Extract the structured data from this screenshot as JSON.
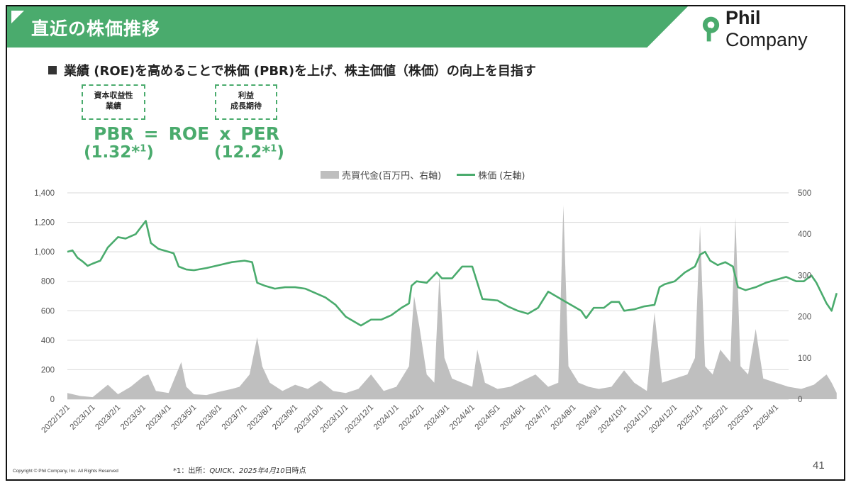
{
  "header": {
    "title": "直近の株価推移",
    "logo_text_bold": "Phil",
    "logo_text": " Company"
  },
  "subtitle": "業績 (ROE)を高めることで株価 (PBR)を上げ、株主価値（株価）の向上を目指す",
  "boxes": {
    "roe": {
      "line1": "資本収益性",
      "line2": "業績"
    },
    "per": {
      "line1": "利益",
      "line2": "成長期待"
    }
  },
  "formula": {
    "pbr": "PBR",
    "eq": "=",
    "roe": "ROE",
    "x": "x",
    "per": "PER",
    "pbr_value": "(1.32*",
    "per_value": "(12.2*",
    "sup": "1",
    "close": ")"
  },
  "legend": {
    "volume": "売買代金(百万円、右軸)",
    "price": "株価 (左軸)"
  },
  "colors": {
    "accent": "#4aab6d",
    "volume": "#bfbfbf"
  },
  "footer": {
    "copyright": "Copyright © Phil Company, Inc.  All Rights Reserved",
    "footnote_prefix": "*1：出所：",
    "footnote_italic": "QUICK、2025年4月10",
    "footnote_suffix": "日時点",
    "page": "41"
  },
  "chart_data": {
    "type": "line",
    "left_axis": {
      "label": "株価 (左軸)",
      "min": 0,
      "max": 1400,
      "ticks": [
        "0",
        "200",
        "400",
        "600",
        "800",
        "1,000",
        "1,200",
        "1,400"
      ]
    },
    "right_axis": {
      "label": "売買代金(百万円、右軸)",
      "min": 0,
      "max": 500,
      "ticks": [
        "0",
        "100",
        "200",
        "300",
        "400",
        "500"
      ]
    },
    "x_ticks": [
      "2022/12/1",
      "2023/1/1",
      "2023/2/1",
      "2023/3/1",
      "2023/4/1",
      "2023/5/1",
      "2023/6/1",
      "2023/7/1",
      "2023/8/1",
      "2023/9/1",
      "2023/10/1",
      "2023/11/1",
      "2023/12/1",
      "2024/1/1",
      "2024/2/1",
      "2024/3/1",
      "2024/4/1",
      "2024/5/1",
      "2024/6/1",
      "2024/7/1",
      "2024/8/1",
      "2024/9/1",
      "2024/10/1",
      "2024/11/1",
      "2024/12/1",
      "2025/1/1",
      "2025/2/1",
      "2025/3/1",
      "2025/4/1"
    ],
    "series": [
      {
        "name": "株価 (左軸)",
        "axis": "left",
        "points": [
          [
            0,
            1000
          ],
          [
            0.2,
            1010
          ],
          [
            0.4,
            960
          ],
          [
            0.6,
            935
          ],
          [
            0.8,
            905
          ],
          [
            1.0,
            920
          ],
          [
            1.3,
            940
          ],
          [
            1.6,
            1030
          ],
          [
            2.0,
            1100
          ],
          [
            2.3,
            1090
          ],
          [
            2.7,
            1120
          ],
          [
            3.1,
            1210
          ],
          [
            3.3,
            1060
          ],
          [
            3.6,
            1020
          ],
          [
            4.0,
            1000
          ],
          [
            4.2,
            990
          ],
          [
            4.4,
            900
          ],
          [
            4.7,
            880
          ],
          [
            5.0,
            875
          ],
          [
            5.5,
            890
          ],
          [
            6.0,
            910
          ],
          [
            6.5,
            930
          ],
          [
            7.0,
            940
          ],
          [
            7.3,
            930
          ],
          [
            7.5,
            790
          ],
          [
            7.8,
            770
          ],
          [
            8.2,
            750
          ],
          [
            8.6,
            760
          ],
          [
            9.0,
            760
          ],
          [
            9.4,
            750
          ],
          [
            9.8,
            720
          ],
          [
            10.2,
            690
          ],
          [
            10.6,
            640
          ],
          [
            11.0,
            560
          ],
          [
            11.3,
            530
          ],
          [
            11.6,
            500
          ],
          [
            12.0,
            540
          ],
          [
            12.4,
            540
          ],
          [
            12.8,
            570
          ],
          [
            13.2,
            620
          ],
          [
            13.5,
            650
          ],
          [
            13.6,
            770
          ],
          [
            13.8,
            800
          ],
          [
            14.2,
            790
          ],
          [
            14.6,
            860
          ],
          [
            14.8,
            820
          ],
          [
            15.2,
            820
          ],
          [
            15.6,
            900
          ],
          [
            16.0,
            900
          ],
          [
            16.4,
            680
          ],
          [
            17.0,
            670
          ],
          [
            17.4,
            630
          ],
          [
            17.8,
            600
          ],
          [
            18.2,
            580
          ],
          [
            18.6,
            620
          ],
          [
            19.0,
            730
          ],
          [
            19.3,
            700
          ],
          [
            19.7,
            660
          ],
          [
            20.0,
            630
          ],
          [
            20.3,
            600
          ],
          [
            20.5,
            550
          ],
          [
            20.8,
            620
          ],
          [
            21.2,
            620
          ],
          [
            21.5,
            660
          ],
          [
            21.8,
            660
          ],
          [
            22.0,
            600
          ],
          [
            22.4,
            610
          ],
          [
            22.8,
            630
          ],
          [
            23.2,
            640
          ],
          [
            23.4,
            760
          ],
          [
            23.6,
            780
          ],
          [
            24.0,
            800
          ],
          [
            24.4,
            860
          ],
          [
            24.8,
            900
          ],
          [
            25.0,
            980
          ],
          [
            25.2,
            1000
          ],
          [
            25.4,
            940
          ],
          [
            25.7,
            910
          ],
          [
            26.0,
            930
          ],
          [
            26.3,
            900
          ],
          [
            26.5,
            760
          ],
          [
            26.8,
            740
          ],
          [
            27.2,
            760
          ],
          [
            27.6,
            790
          ],
          [
            28.0,
            810
          ],
          [
            28.4,
            830
          ],
          [
            28.8,
            800
          ],
          [
            29.1,
            800
          ],
          [
            29.4,
            840
          ],
          [
            29.6,
            790
          ],
          [
            29.8,
            720
          ],
          [
            30.0,
            650
          ],
          [
            30.2,
            600
          ],
          [
            30.4,
            720
          ]
        ]
      },
      {
        "name": "売買代金(百万円、右軸)",
        "axis": "right",
        "points": [
          [
            0,
            15
          ],
          [
            0.5,
            8
          ],
          [
            1.0,
            5
          ],
          [
            1.3,
            20
          ],
          [
            1.6,
            35
          ],
          [
            2.0,
            12
          ],
          [
            2.5,
            30
          ],
          [
            3.0,
            55
          ],
          [
            3.2,
            60
          ],
          [
            3.5,
            20
          ],
          [
            4.0,
            15
          ],
          [
            4.5,
            90
          ],
          [
            4.7,
            30
          ],
          [
            5.0,
            12
          ],
          [
            5.5,
            10
          ],
          [
            6.0,
            18
          ],
          [
            6.5,
            25
          ],
          [
            6.8,
            30
          ],
          [
            7.2,
            60
          ],
          [
            7.5,
            150
          ],
          [
            7.7,
            80
          ],
          [
            8.0,
            40
          ],
          [
            8.5,
            20
          ],
          [
            9.0,
            35
          ],
          [
            9.5,
            25
          ],
          [
            10.0,
            45
          ],
          [
            10.5,
            20
          ],
          [
            11.0,
            15
          ],
          [
            11.5,
            25
          ],
          [
            12.0,
            60
          ],
          [
            12.5,
            20
          ],
          [
            13.0,
            30
          ],
          [
            13.5,
            80
          ],
          [
            13.7,
            250
          ],
          [
            13.9,
            180
          ],
          [
            14.2,
            60
          ],
          [
            14.5,
            40
          ],
          [
            14.7,
            300
          ],
          [
            14.9,
            100
          ],
          [
            15.2,
            50
          ],
          [
            15.6,
            40
          ],
          [
            16.0,
            30
          ],
          [
            16.2,
            120
          ],
          [
            16.5,
            40
          ],
          [
            17.0,
            25
          ],
          [
            17.5,
            30
          ],
          [
            18.0,
            45
          ],
          [
            18.5,
            60
          ],
          [
            19.0,
            30
          ],
          [
            19.4,
            40
          ],
          [
            19.6,
            470
          ],
          [
            19.8,
            80
          ],
          [
            20.2,
            40
          ],
          [
            20.6,
            30
          ],
          [
            21.0,
            25
          ],
          [
            21.5,
            30
          ],
          [
            22.0,
            70
          ],
          [
            22.4,
            40
          ],
          [
            22.9,
            20
          ],
          [
            23.2,
            210
          ],
          [
            23.5,
            40
          ],
          [
            24.0,
            50
          ],
          [
            24.5,
            60
          ],
          [
            24.8,
            100
          ],
          [
            25.0,
            420
          ],
          [
            25.2,
            80
          ],
          [
            25.5,
            60
          ],
          [
            25.8,
            120
          ],
          [
            26.2,
            90
          ],
          [
            26.4,
            440
          ],
          [
            26.6,
            80
          ],
          [
            26.9,
            60
          ],
          [
            27.2,
            170
          ],
          [
            27.5,
            50
          ],
          [
            28.0,
            40
          ],
          [
            28.5,
            30
          ],
          [
            29.0,
            25
          ],
          [
            29.5,
            35
          ],
          [
            30.0,
            60
          ],
          [
            30.2,
            40
          ],
          [
            30.4,
            15
          ]
        ]
      }
    ]
  }
}
